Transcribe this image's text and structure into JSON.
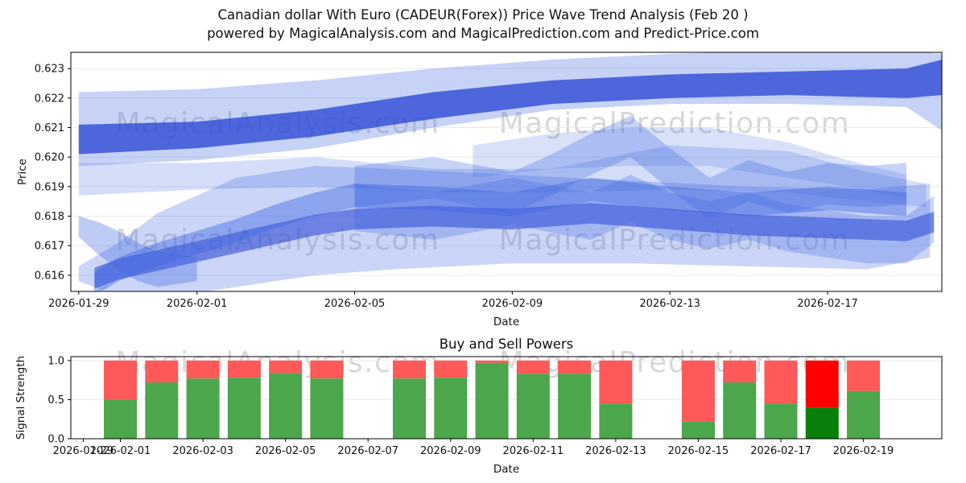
{
  "figure": {
    "title_line1": "Canadian dollar With Euro (CADEUR(Forex)) Price Wave Trend Analysis (Feb 20 )",
    "title_line2": "powered by MagicalAnalysis.com and MagicalPrediction.com and Predict-Price.com",
    "watermark_left": "MagicalAnalysis.com",
    "watermark_right": "MagicalPrediction.com",
    "colors": {
      "band": "#4169e1",
      "band_dark": "#2f4bd6",
      "bar_green": "#4ca64c",
      "bar_red": "#ff5959",
      "bar_green_dark": "#0a800a",
      "bar_red_bright": "#ff0000",
      "watermark": "#d7d7d7",
      "grid": "#e9e9e9"
    }
  },
  "chart_data": [
    {
      "type": "area",
      "title": "",
      "xlabel": "Date",
      "ylabel": "Price",
      "xlim": [
        -0.2,
        21.9
      ],
      "ylim": [
        0.61545,
        0.62355
      ],
      "yticks": [
        0.616,
        0.617,
        0.618,
        0.619,
        0.62,
        0.621,
        0.622,
        0.623
      ],
      "ytick_labels": [
        "0.616",
        "0.617",
        "0.618",
        "0.619",
        "0.620",
        "0.621",
        "0.622",
        "0.623"
      ],
      "xticks": [
        0,
        3,
        7,
        11,
        15,
        19
      ],
      "xtick_labels": [
        "2026-01-29",
        "2026-02-01",
        "2026-02-05",
        "2026-02-09",
        "2026-02-13",
        "2026-02-17"
      ],
      "x_date_origin": "2026-01-29",
      "bands": [
        {
          "name": "upper-light-envelope",
          "opacity": 0.3,
          "x": [
            0,
            3,
            6,
            9,
            12,
            15,
            18,
            21,
            21.9
          ],
          "lower": [
            0.6197,
            0.6199,
            0.6203,
            0.621,
            0.6216,
            0.6218,
            0.6218,
            0.6217,
            0.6209
          ],
          "upper": [
            0.6222,
            0.6223,
            0.6226,
            0.623,
            0.6233,
            0.6235,
            0.6236,
            0.6236,
            0.6235
          ]
        },
        {
          "name": "upper-dark-band",
          "opacity": 0.8,
          "dark": true,
          "x": [
            0,
            3,
            6,
            9,
            12,
            15,
            18,
            21,
            21.9
          ],
          "lower": [
            0.6201,
            0.6203,
            0.6207,
            0.6213,
            0.6218,
            0.622,
            0.6221,
            0.622,
            0.6221
          ],
          "upper": [
            0.6211,
            0.6212,
            0.6216,
            0.6222,
            0.6226,
            0.6228,
            0.6229,
            0.623,
            0.6233
          ]
        },
        {
          "name": "mid-light-band",
          "opacity": 0.22,
          "x": [
            0,
            3,
            6,
            9,
            12,
            15,
            18,
            20,
            21.5
          ],
          "lower": [
            0.6187,
            0.6189,
            0.619,
            0.6188,
            0.6188,
            0.6189,
            0.6188,
            0.6185,
            0.6183
          ],
          "upper": [
            0.6198,
            0.6198,
            0.62,
            0.6196,
            0.6196,
            0.6204,
            0.6202,
            0.6195,
            0.6191
          ]
        },
        {
          "name": "upper-right-light-band",
          "opacity": 0.2,
          "x": [
            10,
            12,
            14,
            16,
            18,
            19.5,
            21
          ],
          "lower": [
            0.6193,
            0.6196,
            0.6197,
            0.6197,
            0.6193,
            0.619,
            0.6186
          ],
          "upper": [
            0.6204,
            0.6208,
            0.621,
            0.621,
            0.6205,
            0.6199,
            0.6194
          ]
        },
        {
          "name": "lower-wide-fan",
          "opacity": 0.28,
          "x": [
            0,
            1,
            2,
            4,
            6,
            8,
            11,
            14,
            17,
            20,
            21.6
          ],
          "lower": [
            0.6158,
            0.6153,
            0.6152,
            0.6156,
            0.616,
            0.6162,
            0.6164,
            0.6164,
            0.6163,
            0.6162,
            0.6166
          ],
          "upper": [
            0.6163,
            0.6171,
            0.6181,
            0.6193,
            0.6197,
            0.6196,
            0.6194,
            0.6192,
            0.619,
            0.6189,
            0.6191
          ]
        },
        {
          "name": "rising-trend-line",
          "opacity": 0.6,
          "dark": true,
          "half_width": 0.00035,
          "x": [
            0.4,
            1,
            2,
            3,
            4,
            5,
            6,
            7,
            9,
            11,
            13,
            15,
            17,
            19,
            21,
            21.7
          ],
          "center": [
            0.6159,
            0.6162,
            0.6165,
            0.6168,
            0.6171,
            0.6174,
            0.6177,
            0.6179,
            0.618,
            0.6179,
            0.6181,
            0.6179,
            0.6177,
            0.6176,
            0.6175,
            0.6178
          ]
        },
        {
          "name": "secondary-trend-line",
          "opacity": 0.45,
          "half_width": 0.0004,
          "x": [
            0.4,
            1,
            2,
            3,
            4,
            5,
            6,
            7,
            9,
            11,
            13,
            15,
            17,
            19,
            21
          ],
          "center": [
            0.6157,
            0.6162,
            0.6167,
            0.6171,
            0.6175,
            0.618,
            0.6184,
            0.6187,
            0.6186,
            0.6184,
            0.6189,
            0.6186,
            0.6184,
            0.6186,
            0.6184
          ]
        },
        {
          "name": "zigzag-upper",
          "opacity": 0.3,
          "half_width": 0.0007,
          "x": [
            7,
            9,
            11,
            12,
            13,
            14,
            15,
            16,
            17,
            18,
            19,
            20,
            21
          ],
          "center": [
            0.619,
            0.6193,
            0.6188,
            0.6194,
            0.6201,
            0.6207,
            0.6196,
            0.6186,
            0.6192,
            0.6188,
            0.6191,
            0.619,
            0.6191
          ]
        },
        {
          "name": "zigzag-lower",
          "opacity": 0.28,
          "half_width": 0.0008,
          "x": [
            7,
            9,
            11,
            13,
            14,
            15,
            16,
            17,
            18,
            19,
            20,
            21,
            21.7
          ],
          "center": [
            0.6183,
            0.618,
            0.6185,
            0.618,
            0.6186,
            0.618,
            0.6177,
            0.618,
            0.6176,
            0.6174,
            0.6172,
            0.6172,
            0.6179
          ]
        },
        {
          "name": "left-wedge",
          "opacity": 0.35,
          "x": [
            0,
            0.5,
            1,
            1.5,
            2,
            3
          ],
          "lower": [
            0.6173,
            0.6167,
            0.6162,
            0.6158,
            0.6156,
            0.6158
          ],
          "upper": [
            0.618,
            0.6178,
            0.6175,
            0.6171,
            0.6168,
            0.6166
          ]
        }
      ]
    },
    {
      "type": "bar",
      "title": "Buy and Sell Powers",
      "xlabel": "Date",
      "ylabel": "Signal Strength",
      "xlim": [
        -1.2,
        19.9
      ],
      "ylim": [
        0,
        1.05
      ],
      "yticks": [
        0.0,
        0.5,
        1.0
      ],
      "ytick_labels": [
        "0.0",
        "0.5",
        "1.0"
      ],
      "xticks": [
        -0.9,
        0,
        2,
        4,
        6,
        8,
        10,
        12,
        14,
        16,
        18
      ],
      "xtick_labels": [
        "2026-01-29",
        "2026-02-01",
        "2026-02-03",
        "2026-02-05",
        "2026-02-07",
        "2026-02-09",
        "2026-02-11",
        "2026-02-13",
        "2026-02-15",
        "2026-02-17",
        "2026-02-19"
      ],
      "bar_width": 0.8,
      "bars": [
        {
          "date": "2026-02-01",
          "x": 0,
          "buy": 0.5,
          "sell": 0.5
        },
        {
          "date": "2026-02-02",
          "x": 1,
          "buy": 0.72,
          "sell": 0.28
        },
        {
          "date": "2026-02-03",
          "x": 2,
          "buy": 0.77,
          "sell": 0.23
        },
        {
          "date": "2026-02-04",
          "x": 3,
          "buy": 0.78,
          "sell": 0.22
        },
        {
          "date": "2026-02-05",
          "x": 4,
          "buy": 0.84,
          "sell": 0.16
        },
        {
          "date": "2026-02-06",
          "x": 5,
          "buy": 0.77,
          "sell": 0.23
        },
        {
          "date": "2026-02-08",
          "x": 7,
          "buy": 0.77,
          "sell": 0.23
        },
        {
          "date": "2026-02-09",
          "x": 8,
          "buy": 0.78,
          "sell": 0.22
        },
        {
          "date": "2026-02-10",
          "x": 9,
          "buy": 0.97,
          "sell": 0.03
        },
        {
          "date": "2026-02-11",
          "x": 10,
          "buy": 0.83,
          "sell": 0.17
        },
        {
          "date": "2026-02-12",
          "x": 11,
          "buy": 0.83,
          "sell": 0.17
        },
        {
          "date": "2026-02-13",
          "x": 12,
          "buy": 0.45,
          "sell": 0.55
        },
        {
          "date": "2026-02-15",
          "x": 14,
          "buy": 0.22,
          "sell": 0.78
        },
        {
          "date": "2026-02-16",
          "x": 15,
          "buy": 0.72,
          "sell": 0.28
        },
        {
          "date": "2026-02-17",
          "x": 16,
          "buy": 0.45,
          "sell": 0.55
        },
        {
          "date": "2026-02-18",
          "x": 17,
          "buy": 0.4,
          "sell": 0.6,
          "highlight": true
        },
        {
          "date": "2026-02-19",
          "x": 18,
          "buy": 0.61,
          "sell": 0.39
        }
      ]
    }
  ]
}
